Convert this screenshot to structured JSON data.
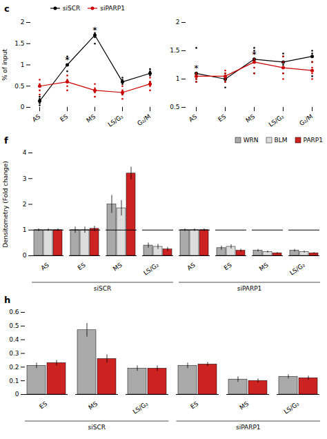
{
  "chart_data": [
    {
      "type": "line",
      "title": "c",
      "categories": [
        "AS",
        "ES",
        "MS",
        "LS/G₂",
        "G₂/M"
      ],
      "ylabel": "% of input",
      "ylim": [
        0,
        2
      ],
      "yticks": [
        0,
        0.5,
        1,
        1.5,
        2
      ],
      "legend": "top",
      "series": [
        {
          "name": "siSCR",
          "color": "#000000",
          "marker": "circle",
          "values": [
            0.15,
            1.0,
            1.7,
            0.6,
            0.8
          ],
          "points": [
            [
              0.05,
              0.1,
              0.2,
              0.25
            ],
            [
              0.85,
              1.0,
              1.15,
              1.2
            ],
            [
              1.5,
              1.65,
              1.75,
              1.85
            ],
            [
              0.3,
              0.55,
              0.65,
              0.7
            ],
            [
              0.6,
              0.75,
              0.85,
              0.9
            ]
          ]
        },
        {
          "name": "siPARP1",
          "color": "#cc0000",
          "marker": "circle",
          "values": [
            0.5,
            0.6,
            0.4,
            0.35,
            0.55
          ],
          "points": [
            [
              0.3,
              0.4,
              0.55,
              0.65
            ],
            [
              0.4,
              0.5,
              0.65,
              0.75
            ],
            [
              0.25,
              0.35,
              0.45,
              0.55
            ],
            [
              0.2,
              0.3,
              0.4,
              0.5
            ],
            [
              0.4,
              0.5,
              0.6,
              0.7
            ]
          ]
        }
      ],
      "annotations": [
        {
          "text": "*",
          "category": "ES"
        },
        {
          "text": "*",
          "category": "MS"
        }
      ]
    },
    {
      "type": "line",
      "categories": [
        "AS",
        "ES",
        "MS",
        "LS/G₂",
        "G₂/M"
      ],
      "ylim": [
        0.5,
        2.0
      ],
      "yticks": [
        0.5,
        1,
        1.5,
        2
      ],
      "series": [
        {
          "name": "siSCR",
          "color": "#000000",
          "marker": "circle",
          "values": [
            1.1,
            1.0,
            1.35,
            1.3,
            1.4
          ],
          "points": [
            [
              0.95,
              1.0,
              1.1,
              1.55
            ],
            [
              0.85,
              0.95,
              1.05,
              1.1
            ],
            [
              1.1,
              1.3,
              1.5,
              1.55
            ],
            [
              1.1,
              1.25,
              1.4,
              1.45
            ],
            [
              1.05,
              1.3,
              1.45,
              1.5
            ]
          ]
        },
        {
          "name": "siPARP1",
          "color": "#cc0000",
          "marker": "circle",
          "values": [
            1.05,
            1.05,
            1.3,
            1.2,
            1.15
          ],
          "points": [
            [
              0.95,
              1.0,
              1.05,
              1.1
            ],
            [
              0.95,
              1.0,
              1.1,
              1.15
            ],
            [
              1.1,
              1.2,
              1.35,
              1.45
            ],
            [
              1.0,
              1.1,
              1.3,
              1.4
            ],
            [
              1.0,
              1.1,
              1.2,
              1.3
            ]
          ]
        }
      ],
      "annotations": [
        {
          "text": "*",
          "category": "AS"
        },
        {
          "text": "*",
          "category": "MS"
        }
      ]
    },
    {
      "type": "bar",
      "title": "f",
      "categories": [
        "AS",
        "ES",
        "MS",
        "LS/G₂",
        "AS",
        "ES",
        "MS",
        "LS/G₂"
      ],
      "groups": [
        "siSCR",
        "siPARP1"
      ],
      "ylabel": "Densitometry (Fold change)",
      "ylim": [
        0,
        4
      ],
      "yticks": [
        0,
        1,
        2,
        3,
        4
      ],
      "legend": "top-right",
      "hline": 1,
      "series": [
        {
          "name": "WRN",
          "color": "#aaaaaa",
          "values": [
            1.0,
            1.0,
            2.0,
            0.4,
            1.0,
            0.3,
            0.2,
            0.2
          ],
          "errors": [
            0.05,
            0.12,
            0.35,
            0.1,
            0.05,
            0.08,
            0.05,
            0.05
          ]
        },
        {
          "name": "BLM",
          "color": "#dddddd",
          "values": [
            1.0,
            1.0,
            1.85,
            0.35,
            1.0,
            0.35,
            0.15,
            0.15
          ],
          "errors": [
            0.05,
            0.12,
            0.3,
            0.1,
            0.05,
            0.08,
            0.04,
            0.04
          ]
        },
        {
          "name": "PARP1",
          "color": "#cc2222",
          "values": [
            1.0,
            1.05,
            3.2,
            0.25,
            1.0,
            0.2,
            0.1,
            0.1
          ],
          "errors": [
            0.05,
            0.1,
            0.25,
            0.08,
            0.05,
            0.06,
            0.03,
            0.03
          ]
        }
      ]
    },
    {
      "type": "bar",
      "title": "h",
      "categories": [
        "ES",
        "MS",
        "LS/G₂",
        "ES",
        "MS",
        "LS/G₂"
      ],
      "groups": [
        "siSCR",
        "siPARP1"
      ],
      "ylim": [
        0.0,
        0.6
      ],
      "yticks": [
        0,
        0.1,
        0.2,
        0.3,
        0.4,
        0.5,
        0.6
      ],
      "series": [
        {
          "color": "#aaaaaa",
          "values": [
            0.21,
            0.47,
            0.19,
            0.21,
            0.11,
            0.13
          ],
          "errors": [
            0.02,
            0.05,
            0.02,
            0.02,
            0.02,
            0.015
          ]
        },
        {
          "color": "#cc2222",
          "values": [
            0.23,
            0.26,
            0.19,
            0.22,
            0.1,
            0.12
          ],
          "errors": [
            0.02,
            0.03,
            0.02,
            0.015,
            0.015,
            0.015
          ]
        }
      ]
    }
  ]
}
